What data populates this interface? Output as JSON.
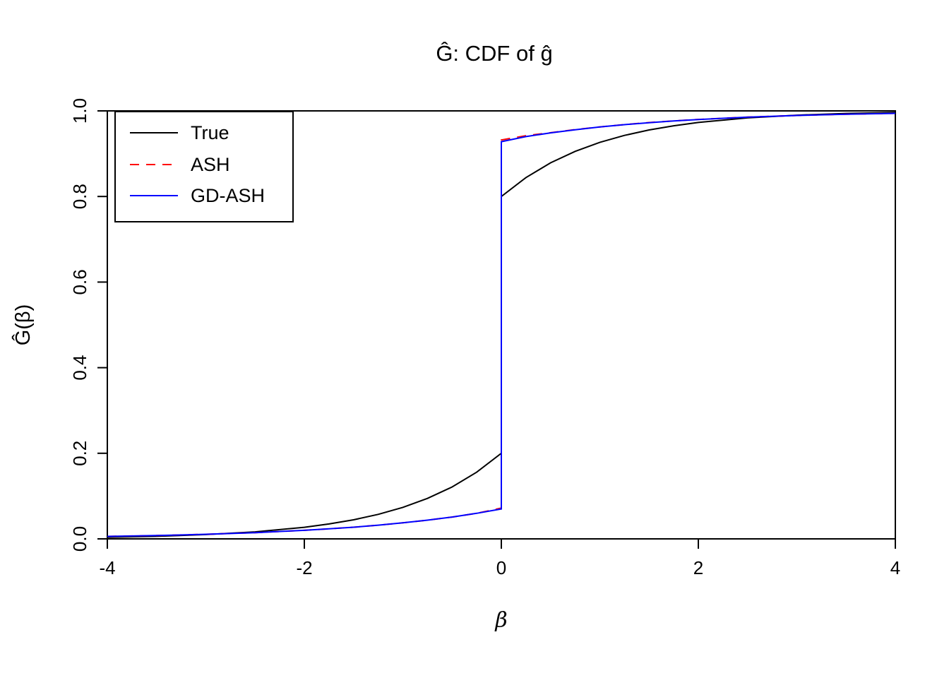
{
  "chart_data": {
    "type": "line",
    "title": "Ĝ: CDF of ĝ",
    "xlabel": "β",
    "ylabel": "Ĝ(β)",
    "xlim": [
      -4,
      4
    ],
    "ylim": [
      0,
      1
    ],
    "grid": false,
    "xticks": [
      -4,
      -2,
      0,
      2,
      4
    ],
    "xtick_labels": [
      "-4",
      "-2",
      "0",
      "2",
      "4"
    ],
    "yticks": [
      0,
      0.2,
      0.4,
      0.6,
      0.8,
      1.0
    ],
    "ytick_labels": [
      "0.0",
      "0.2",
      "0.4",
      "0.6",
      "0.8",
      "1.0"
    ],
    "legend": {
      "position": "topleft",
      "items": [
        {
          "label": "True",
          "color": "#000000",
          "dash": "solid"
        },
        {
          "label": "ASH",
          "color": "#FF0000",
          "dash": "dashed"
        },
        {
          "label": "GD-ASH",
          "color": "#0000FF",
          "dash": "solid"
        }
      ]
    },
    "series": [
      {
        "name": "True",
        "color": "#000000",
        "dash": "solid",
        "points": [
          [
            -4,
            0.0037
          ],
          [
            -3.5,
            0.006
          ],
          [
            -3,
            0.01
          ],
          [
            -2.5,
            0.0164
          ],
          [
            -2,
            0.0271
          ],
          [
            -1.75,
            0.0348
          ],
          [
            -1.5,
            0.0446
          ],
          [
            -1.25,
            0.0573
          ],
          [
            -1,
            0.0736
          ],
          [
            -0.75,
            0.0945
          ],
          [
            -0.5,
            0.1213
          ],
          [
            -0.25,
            0.1558
          ],
          [
            0,
            0.2
          ],
          [
            0,
            0.8
          ],
          [
            0.25,
            0.8442
          ],
          [
            0.5,
            0.8787
          ],
          [
            0.75,
            0.9055
          ],
          [
            1,
            0.9264
          ],
          [
            1.25,
            0.9427
          ],
          [
            1.5,
            0.9554
          ],
          [
            1.75,
            0.9652
          ],
          [
            2,
            0.9729
          ],
          [
            2.5,
            0.9836
          ],
          [
            3,
            0.99
          ],
          [
            3.5,
            0.994
          ],
          [
            4,
            0.9963
          ]
        ]
      },
      {
        "name": "ASH",
        "color": "#FF0000",
        "dash": "dashed",
        "points": [
          [
            -4,
            0.0057
          ],
          [
            -3.5,
            0.0078
          ],
          [
            -3,
            0.0107
          ],
          [
            -2.5,
            0.0146
          ],
          [
            -2,
            0.02
          ],
          [
            -1.75,
            0.0234
          ],
          [
            -1.5,
            0.0273
          ],
          [
            -1.25,
            0.032
          ],
          [
            -1,
            0.0374
          ],
          [
            -0.75,
            0.0437
          ],
          [
            -0.5,
            0.051
          ],
          [
            -0.25,
            0.0597
          ],
          [
            0,
            0.072
          ],
          [
            0,
            0.932
          ],
          [
            0.25,
            0.942
          ],
          [
            0.5,
            0.949
          ],
          [
            0.75,
            0.9563
          ],
          [
            1,
            0.9626
          ],
          [
            1.25,
            0.968
          ],
          [
            1.5,
            0.9727
          ],
          [
            1.75,
            0.9766
          ],
          [
            2,
            0.98
          ],
          [
            2.5,
            0.9854
          ],
          [
            3,
            0.9893
          ],
          [
            3.5,
            0.9922
          ],
          [
            4,
            0.9943
          ]
        ]
      },
      {
        "name": "GD-ASH",
        "color": "#0000FF",
        "dash": "solid",
        "points": [
          [
            -4,
            0.0057
          ],
          [
            -3.5,
            0.0078
          ],
          [
            -3,
            0.0107
          ],
          [
            -2.5,
            0.0146
          ],
          [
            -2,
            0.02
          ],
          [
            -1.75,
            0.0234
          ],
          [
            -1.5,
            0.0273
          ],
          [
            -1.25,
            0.032
          ],
          [
            -1,
            0.0374
          ],
          [
            -0.75,
            0.0437
          ],
          [
            -0.5,
            0.051
          ],
          [
            -0.25,
            0.0597
          ],
          [
            0,
            0.07
          ],
          [
            0,
            0.928
          ],
          [
            0.25,
            0.94
          ],
          [
            0.5,
            0.9487
          ],
          [
            0.75,
            0.956
          ],
          [
            1,
            0.9624
          ],
          [
            1.25,
            0.9678
          ],
          [
            1.5,
            0.9725
          ],
          [
            1.75,
            0.9764
          ],
          [
            2,
            0.9799
          ],
          [
            2.5,
            0.9853
          ],
          [
            3,
            0.9892
          ],
          [
            3.5,
            0.9921
          ],
          [
            4,
            0.9942
          ]
        ]
      }
    ]
  }
}
